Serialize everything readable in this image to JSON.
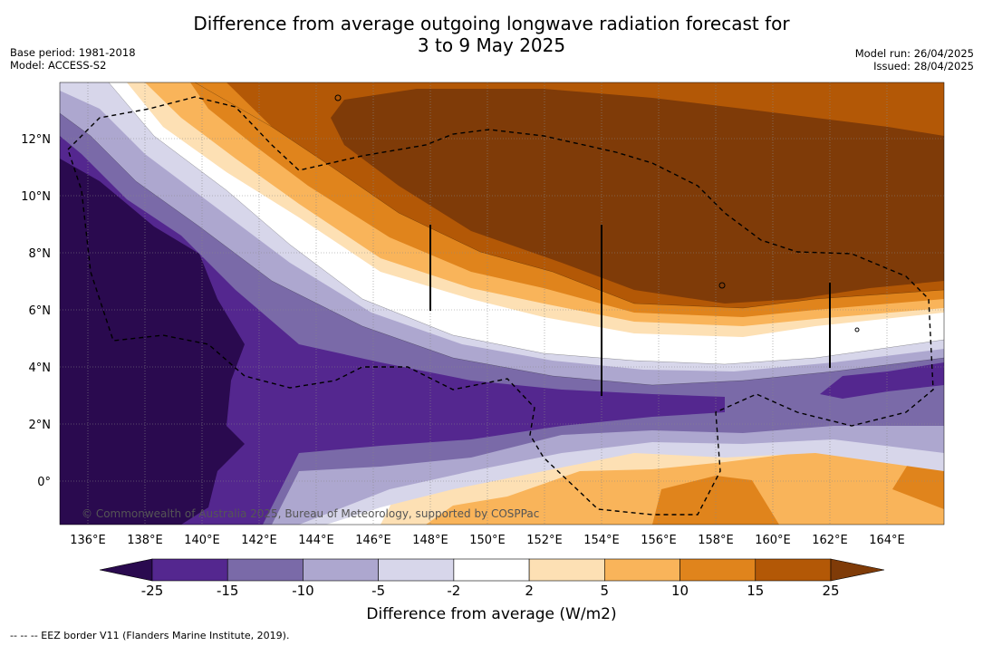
{
  "title_line1": "Difference from average outgoing longwave radiation forecast for",
  "title_line2": "3 to 9 May 2025",
  "base_period": "Base period: 1981-2018",
  "model": "Model: ACCESS-S2",
  "model_run": "Model run: 26/04/2025",
  "issued": "Issued: 28/04/2025",
  "lat_labels": [
    "12°N",
    "10°N",
    "8°N",
    "6°N",
    "4°N",
    "2°N",
    "0°"
  ],
  "lat_values": [
    12,
    10,
    8,
    6,
    4,
    2,
    0
  ],
  "lon_labels": [
    "136°E",
    "138°E",
    "140°E",
    "142°E",
    "144°E",
    "146°E",
    "148°E",
    "150°E",
    "152°E",
    "154°E",
    "156°E",
    "158°E",
    "160°E",
    "162°E",
    "164°E"
  ],
  "lon_values": [
    136,
    138,
    140,
    142,
    144,
    146,
    148,
    150,
    152,
    154,
    156,
    158,
    160,
    162,
    164
  ],
  "credit": "© Commonwealth of Australia 2025, Bureau of Meteorology, supported by COSPPac",
  "colorbar": {
    "ticks": [
      "-25",
      "-15",
      "-10",
      "-5",
      "-2",
      "2",
      "5",
      "10",
      "15",
      "25"
    ],
    "colors": [
      "#2a0a4f",
      "#54278f",
      "#7a6aa8",
      "#ada7cf",
      "#d7d6ea",
      "#ffffff",
      "#fde0b4",
      "#f9b45a",
      "#e0841c",
      "#b35806",
      "#7f3b08"
    ],
    "title": "Difference from average (W/m2)"
  },
  "footnote": "--  --  -- EEZ border V11 (Flanders Marine Institute, 2019)."
}
